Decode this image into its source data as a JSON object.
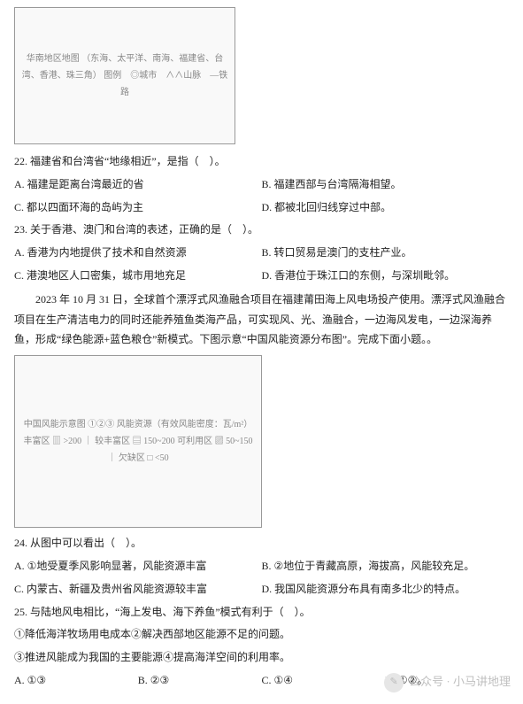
{
  "map1": {
    "placeholder": "华南地区地图\n（东海、太平洋、南海、福建省、台湾、香港、珠三角）\n图例　◎城市　∧∧山脉　—铁路"
  },
  "q22": {
    "stem": "22. 福建省和台湾省“地缘相近”，是指（　）。",
    "A": "A. 福建是距离台湾最近的省",
    "B": "B. 福建西部与台湾隔海相望。",
    "C": "C. 都以四面环海的岛屿为主",
    "D": "D. 都被北回归线穿过中部。"
  },
  "q23": {
    "stem": "23. 关于香港、澳门和台湾的表述，正确的是（　）。",
    "A": "A. 香港为内地提供了技术和自然资源",
    "B": "B. 转口贸易是澳门的支柱产业。",
    "C": "C. 港澳地区人口密集，城市用地充足",
    "D": "D. 香港位于珠江口的东侧，与深圳毗邻。"
  },
  "passage1": "2023 年 10 月 31 日，全球首个漂浮式风渔融合项目在福建莆田海上风电场投产使用。漂浮式风渔融合项目在生产清洁电力的同时还能养殖鱼类海产品，可实现风、光、渔融合，一边海风发电，一边深海养鱼，形成“绿色能源+蓝色粮仓”新模式。下图示意“中国风能资源分布图”。完成下面小题。。",
  "map2": {
    "placeholder": "中国风能示意图\n①②③\n风能资源（有效风能密度：瓦/m²）\n丰富区 ▥ >200 ｜ 较丰富区 ▤ 150~200\n可利用区 ▨ 50~150 ｜ 欠缺区 □ <50"
  },
  "q24": {
    "stem": "24. 从图中可以看出（　）。",
    "A": "A. ①地受夏季风影响显著，风能资源丰富",
    "B": "B. ②地位于青藏高原，海拔高，风能较充足。",
    "C": "C. 内蒙古、新疆及贵州省风能资源较丰富",
    "D": "D. 我国风能资源分布具有南多北少的特点。"
  },
  "q25": {
    "stem": "25. 与陆地风电相比，“海上发电、海下养鱼”模式有利于（　）。",
    "s1": "①降低海洋牧场用电成本②解决西部地区能源不足的问题。",
    "s2": "③推进风能成为我国的主要能源④提高海洋空间的利用率。",
    "A": "A. ①③",
    "B": "B. ②③",
    "C": "C. ①④",
    "D": "D. ①②。"
  },
  "watermark": {
    "label": "公众号 · 小马讲地理",
    "icon": "✎"
  }
}
